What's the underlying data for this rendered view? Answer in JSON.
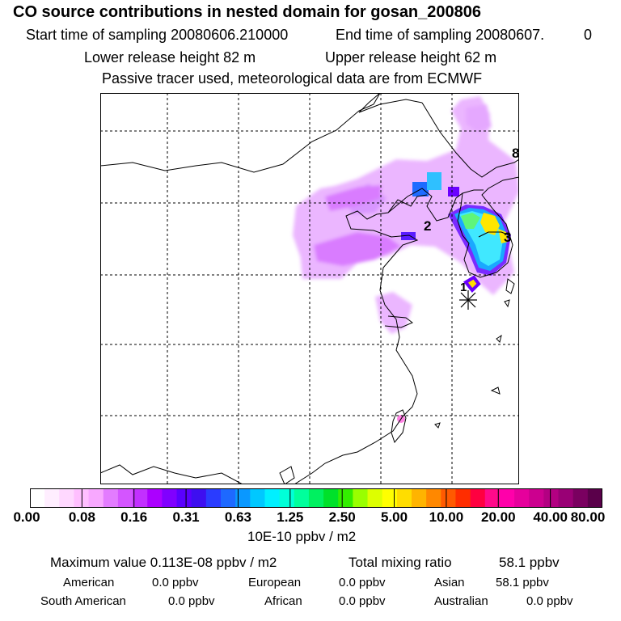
{
  "header": {
    "title": "CO  source contributions in nested domain for gosan_200806",
    "start_label": "Start time of sampling 20080606.210000",
    "end_label": "End time of sampling 20080607.",
    "end_suffix": "0",
    "lower_release": "Lower release height   82 m",
    "upper_release": "Upper release height   62 m",
    "note": "Passive tracer used, meteorological data are from ECMWF"
  },
  "map": {
    "markers": [
      "2",
      "3",
      "8",
      "1"
    ],
    "receptor_symbol": "asterisk",
    "grid": "dashed"
  },
  "colorbar": {
    "colors": [
      "#ffffff",
      "#ffeeff",
      "#ffd8ff",
      "#ffbfff",
      "#f8a8ff",
      "#e37cff",
      "#d455ff",
      "#c230ff",
      "#ab00ff",
      "#8000ff",
      "#5a00ff",
      "#3e0ff0",
      "#2a3cff",
      "#1e69ff",
      "#0a98ff",
      "#00c8ff",
      "#00f0ff",
      "#00ffd8",
      "#00ff9c",
      "#00f060",
      "#00e12a",
      "#33ee00",
      "#99ff00",
      "#ddff00",
      "#ffff00",
      "#ffdd00",
      "#ffb400",
      "#ff8800",
      "#ff5a00",
      "#ff2d00",
      "#ff0040",
      "#ff0a8a",
      "#ff00aa",
      "#e6009c",
      "#cc008f",
      "#b30082",
      "#990075",
      "#7a0060",
      "#5a004a"
    ],
    "tick_labels": [
      "0.00",
      "0.08",
      "0.16",
      "0.31",
      "0.63",
      "1.25",
      "2.50",
      "5.00",
      "10.00",
      "20.00",
      "40.00",
      "80.00"
    ],
    "unit": "10E-10 ppbv / m2"
  },
  "summary": {
    "max_value": "Maximum value  0.113E-08 ppbv / m2",
    "total_label": "Total mixing ratio",
    "total_value": "58.1 ppbv",
    "regions": [
      {
        "name": "American",
        "value": "0.0 ppbv"
      },
      {
        "name": "European",
        "value": "0.0 ppbv"
      },
      {
        "name": "Asian",
        "value": "58.1 ppbv"
      },
      {
        "name": "South American",
        "value": "0.0 ppbv"
      },
      {
        "name": "African",
        "value": "0.0 ppbv"
      },
      {
        "name": "Australian",
        "value": "0.0 ppbv"
      }
    ]
  }
}
